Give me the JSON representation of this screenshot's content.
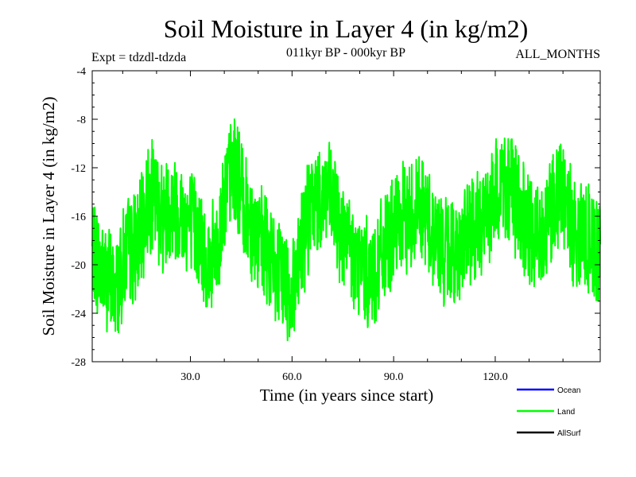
{
  "chart_data": {
    "type": "line",
    "title": "Soil Moisture in Layer 4 (in kg/m2)",
    "subtitle_left": "Expt = tdzdl-tdzda",
    "subtitle_center": "011kyr BP - 000kyr BP",
    "subtitle_right": "ALL_MONTHS",
    "xlabel": "Time (in years since start)",
    "ylabel": "Soil Moisture in Layer 4 (in kg/m2)",
    "xlim": [
      1,
      151
    ],
    "ylim": [
      -28,
      -4
    ],
    "xticks": [
      30,
      60,
      90,
      120
    ],
    "xtick_labels": [
      "30.0",
      "60.0",
      "90.0",
      "120.0"
    ],
    "yticks": [
      -4,
      -8,
      -12,
      -16,
      -20,
      -24,
      -28
    ],
    "ytick_labels": [
      "-4",
      "-8",
      "-12",
      "-16",
      "-20",
      "-24",
      "-28"
    ],
    "legend_position": "bottom-right",
    "series": [
      {
        "name": "Ocean",
        "color": "#0000ff",
        "values": []
      },
      {
        "name": "Land",
        "color": "#00ff00",
        "anchor_x": [
          1,
          5,
          8,
          11,
          15,
          18,
          22,
          25,
          28,
          32,
          35,
          38,
          40,
          43,
          46,
          50,
          53,
          56,
          60,
          63,
          66,
          70,
          73,
          77,
          80,
          84,
          87,
          91,
          94,
          98,
          101,
          105,
          108,
          111,
          115,
          119,
          122,
          125,
          128,
          131,
          134,
          137,
          140,
          143,
          147,
          151
        ],
        "anchor_y": [
          -19,
          -21,
          -22,
          -19,
          -18,
          -14,
          -16,
          -15,
          -16,
          -17,
          -20,
          -19,
          -14,
          -12,
          -15,
          -18,
          -19,
          -21,
          -22,
          -18,
          -15,
          -14,
          -16,
          -19,
          -20,
          -21,
          -19,
          -17,
          -16,
          -15,
          -17,
          -19,
          -19,
          -18,
          -17,
          -15,
          -13,
          -14,
          -16,
          -18,
          -17,
          -15,
          -14,
          -17,
          -18,
          -19
        ],
        "amplitude": 4.3,
        "samples_per_year": 12,
        "noise_seed": 7
      },
      {
        "name": "AllSurf",
        "color": "#000000",
        "values": []
      }
    ]
  }
}
